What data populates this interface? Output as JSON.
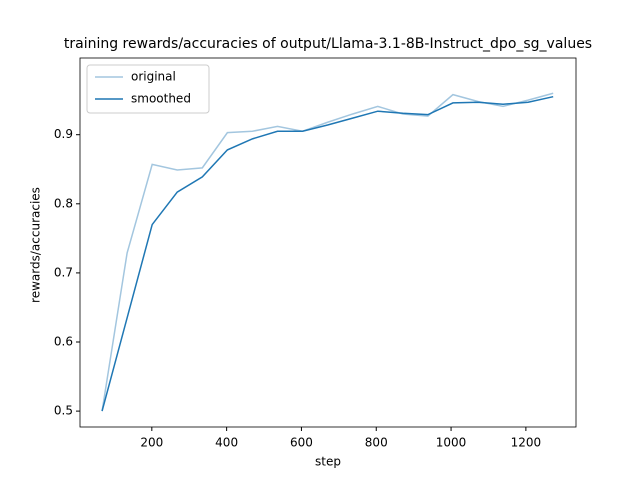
{
  "chart_data": {
    "type": "line",
    "title": "training rewards/accuracies of output/Llama-3.1-8B-Instruct_dpo_sg_values",
    "xlabel": "step",
    "ylabel": "rewards/accuracies",
    "x": [
      67,
      134,
      201,
      268,
      335,
      402,
      469,
      536,
      603,
      670,
      737,
      804,
      871,
      938,
      1005,
      1072,
      1139,
      1206,
      1273
    ],
    "series": [
      {
        "name": "original",
        "color": "#a3c6df",
        "values": [
          0.5,
          0.729,
          0.857,
          0.849,
          0.852,
          0.903,
          0.905,
          0.912,
          0.905,
          0.918,
          0.93,
          0.941,
          0.93,
          0.927,
          0.958,
          0.948,
          0.941,
          0.95,
          0.96
        ]
      },
      {
        "name": "smoothed",
        "color": "#1f77b4",
        "values": [
          0.5,
          0.635,
          0.77,
          0.817,
          0.839,
          0.878,
          0.894,
          0.905,
          0.905,
          0.914,
          0.924,
          0.934,
          0.931,
          0.929,
          0.946,
          0.947,
          0.944,
          0.947,
          0.955
        ]
      }
    ],
    "xlim": [
      8,
      1334
    ],
    "ylim": [
      0.477,
      1.011
    ],
    "xticks": [
      200,
      400,
      600,
      800,
      1000,
      1200
    ],
    "yticks": [
      0.5,
      0.6,
      0.7,
      0.8,
      0.9
    ],
    "legend": "upper left"
  }
}
